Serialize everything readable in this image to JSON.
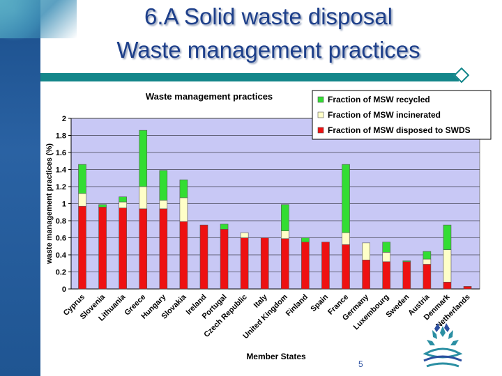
{
  "slide": {
    "title_line_1": "6.A Solid waste disposal",
    "title_line_2": "Waste management practices",
    "page_number": "5"
  },
  "colors": {
    "title": "#1d3f8a",
    "rule": "#13868a",
    "plot_bg": "#c8c8f5",
    "recycled": "#33dd33",
    "incinerated": "#ffffc8",
    "swds": "#ee1111"
  },
  "chart_data": {
    "type": "bar",
    "stacked": true,
    "title": "Waste management practices",
    "xlabel": "Member States",
    "ylabel": "waste management practices (%)",
    "ylim": [
      0,
      2
    ],
    "yticks": [
      0,
      0.2,
      0.4,
      0.6,
      0.8,
      1,
      1.2,
      1.4,
      1.6,
      1.8,
      2
    ],
    "ytick_labels": [
      "0",
      "0.2",
      "0.4",
      "0.6",
      "0.8",
      "1",
      "1.2",
      "1.4",
      "1.6",
      "1.8",
      "2"
    ],
    "grid": "horizontal",
    "legend_position": "top-right",
    "categories": [
      "Cyprus",
      "Slovenia",
      "Lithuania",
      "Greece",
      "Hungary",
      "Slovakia",
      "Ireland",
      "Portugal",
      "Czech Republic",
      "Italy",
      "United Kingdom",
      "Finland",
      "Spain",
      "France",
      "Germany",
      "Luxembourg",
      "Sweden",
      "Austria",
      "Denmark",
      "Netherlands"
    ],
    "series": [
      {
        "name": "Fraction of MSW disposed to SWDS",
        "color": "#ee1111",
        "values": [
          0.97,
          0.96,
          0.95,
          0.94,
          0.94,
          0.79,
          0.75,
          0.7,
          0.6,
          0.6,
          0.59,
          0.55,
          0.55,
          0.52,
          0.34,
          0.32,
          0.32,
          0.29,
          0.08,
          0.03
        ]
      },
      {
        "name": "Fraction of MSW incinerated",
        "color": "#ffffc8",
        "values": [
          0.15,
          0.0,
          0.07,
          0.26,
          0.1,
          0.28,
          0.0,
          0.0,
          0.06,
          0.0,
          0.09,
          0.0,
          0.0,
          0.14,
          0.2,
          0.11,
          0.0,
          0.06,
          0.38,
          0.0
        ]
      },
      {
        "name": "Fraction of MSW recycled",
        "color": "#33dd33",
        "values": [
          0.34,
          0.03,
          0.06,
          0.66,
          0.35,
          0.21,
          0.0,
          0.06,
          0.0,
          0.0,
          0.31,
          0.05,
          0.0,
          0.8,
          0.0,
          0.12,
          0.01,
          0.09,
          0.29,
          0.0
        ]
      }
    ],
    "legend_order": [
      "Fraction of MSW recycled",
      "Fraction of MSW incinerated",
      "Fraction of MSW disposed to SWDS"
    ]
  }
}
